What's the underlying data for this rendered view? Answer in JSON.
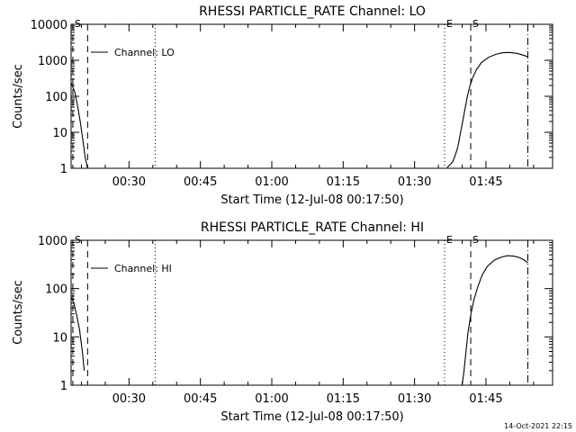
{
  "footer": {
    "timestamp": "14-Oct-2021 22:15"
  },
  "chart_data": [
    {
      "type": "line",
      "title": "RHESSI PARTICLE_RATE Channel: LO",
      "xlabel": "Start Time (12-Jul-08 00:17:50)",
      "ylabel": "Counts/sec",
      "yscale": "log",
      "ylim": [
        1,
        10000
      ],
      "yticks": [
        {
          "v": 1,
          "label": "1"
        },
        {
          "v": 10,
          "label": "10"
        },
        {
          "v": 100,
          "label": "100"
        },
        {
          "v": 1000,
          "label": "1000"
        },
        {
          "v": 10000,
          "label": "10000"
        }
      ],
      "xlim_min": [
        17.83,
        119.0
      ],
      "xticks": [
        {
          "v": 30,
          "label": "00:30"
        },
        {
          "v": 45,
          "label": "00:45"
        },
        {
          "v": 60,
          "label": "01:00"
        },
        {
          "v": 75,
          "label": "01:15"
        },
        {
          "v": 90,
          "label": "01:30"
        },
        {
          "v": 105,
          "label": "01:45"
        }
      ],
      "legend": "Channel: LO",
      "markers": [
        {
          "t": 18.2,
          "style": "dashed",
          "label": "S"
        },
        {
          "t": 21.3,
          "style": "dashed",
          "label": ""
        },
        {
          "t": 35.5,
          "style": "dotted",
          "label": ""
        },
        {
          "t": 96.3,
          "style": "dotted",
          "label": "E"
        },
        {
          "t": 101.8,
          "style": "dashed",
          "label": "S"
        },
        {
          "t": 113.8,
          "style": "dashdot",
          "label": ""
        }
      ],
      "series": [
        {
          "x": [
            17.9,
            18.6,
            19.2,
            19.8,
            20.3,
            20.8,
            21.3
          ],
          "y": [
            230,
            130,
            55,
            18,
            6,
            2,
            1
          ]
        },
        {
          "x": [
            96.3,
            96.8,
            97.0,
            97.3,
            97.6,
            98.1,
            98.6,
            99.1,
            99.6,
            100.1,
            100.6,
            101.1,
            101.6,
            102.2,
            103.0,
            104.0,
            105.5,
            107.0,
            108.5,
            110.0,
            111.5,
            112.8,
            113.8
          ],
          "y": [
            1,
            1,
            1.1,
            1.2,
            1.3,
            1.6,
            2.4,
            4,
            9,
            20,
            45,
            100,
            190,
            330,
            550,
            850,
            1200,
            1450,
            1620,
            1650,
            1560,
            1400,
            1250
          ]
        }
      ]
    },
    {
      "type": "line",
      "title": "RHESSI PARTICLE_RATE Channel: HI",
      "xlabel": "Start Time (12-Jul-08 00:17:50)",
      "ylabel": "Counts/sec",
      "yscale": "log",
      "ylim": [
        1,
        1000
      ],
      "yticks": [
        {
          "v": 1,
          "label": "1"
        },
        {
          "v": 10,
          "label": "10"
        },
        {
          "v": 100,
          "label": "100"
        },
        {
          "v": 1000,
          "label": "1000"
        }
      ],
      "xlim_min": [
        17.83,
        119.0
      ],
      "xticks": [
        {
          "v": 30,
          "label": "00:30"
        },
        {
          "v": 45,
          "label": "00:45"
        },
        {
          "v": 60,
          "label": "01:00"
        },
        {
          "v": 75,
          "label": "01:15"
        },
        {
          "v": 90,
          "label": "01:30"
        },
        {
          "v": 105,
          "label": "01:45"
        }
      ],
      "legend": "Channel: HI",
      "markers": [
        {
          "t": 18.2,
          "style": "dashed",
          "label": "S"
        },
        {
          "t": 21.3,
          "style": "dashed",
          "label": ""
        },
        {
          "t": 35.5,
          "style": "dotted",
          "label": ""
        },
        {
          "t": 96.3,
          "style": "dotted",
          "label": "E"
        },
        {
          "t": 101.8,
          "style": "dashed",
          "label": "S"
        },
        {
          "t": 113.8,
          "style": "dashdot",
          "label": ""
        }
      ],
      "series": [
        {
          "x": [
            17.9,
            18.4,
            19.0,
            19.6,
            20.2,
            20.6
          ],
          "y": [
            65,
            50,
            28,
            14,
            5,
            2
          ]
        },
        {
          "x": [
            100.0,
            100.4,
            100.8,
            101.2,
            101.8,
            102.5,
            103.3,
            104.2,
            105.3,
            106.8,
            108.3,
            109.5,
            110.8,
            112.0,
            113.0,
            113.8
          ],
          "y": [
            1,
            2,
            5,
            12,
            28,
            60,
            110,
            190,
            290,
            390,
            450,
            480,
            470,
            440,
            390,
            340
          ]
        }
      ]
    }
  ]
}
